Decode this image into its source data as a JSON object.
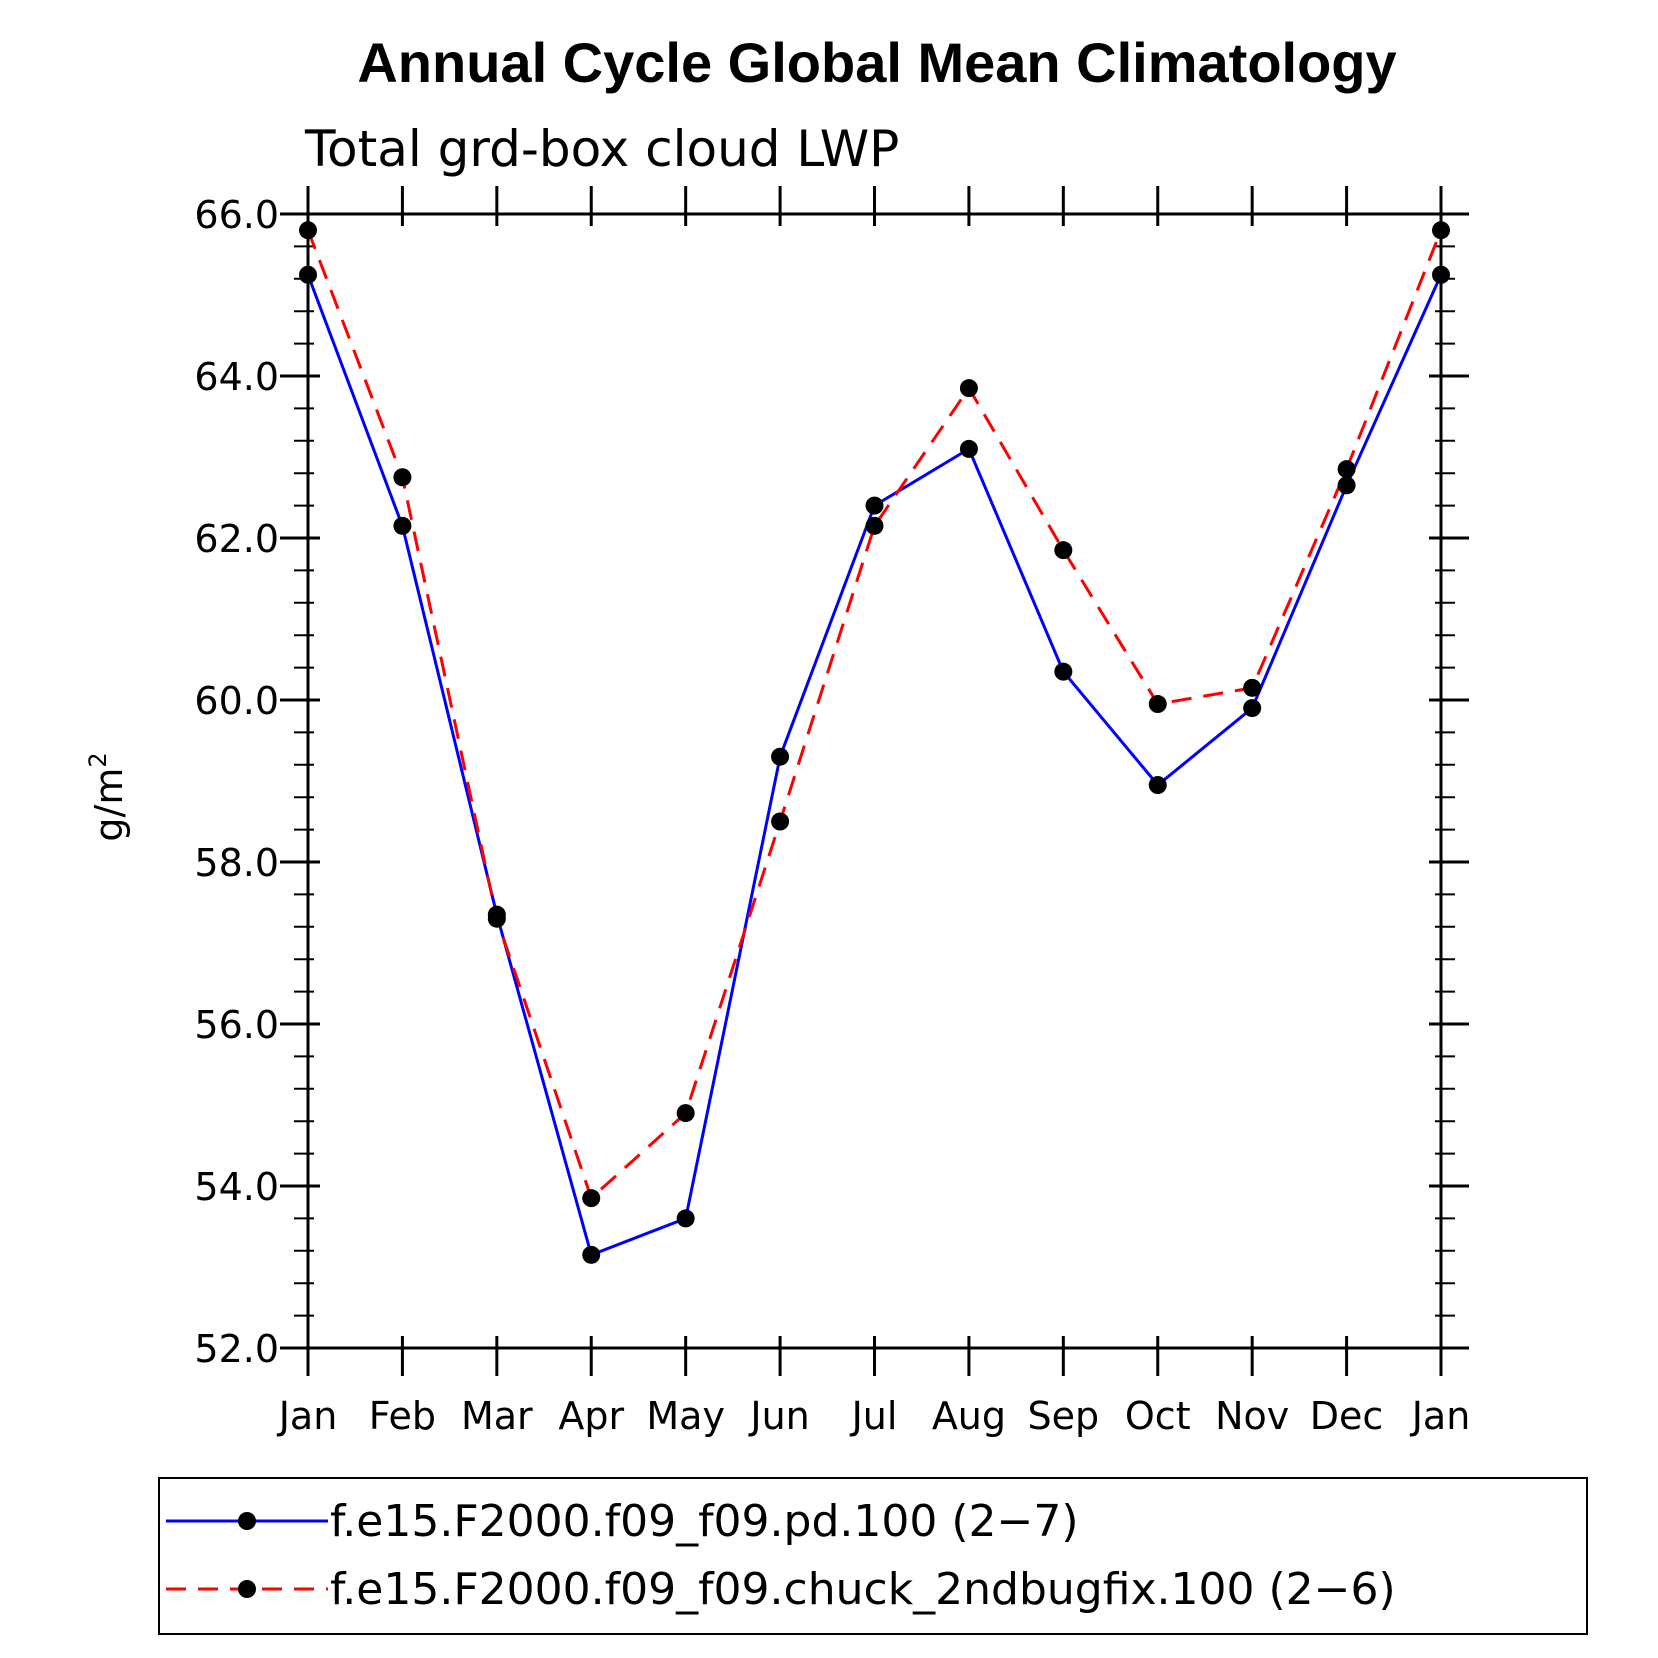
{
  "chart_data": {
    "type": "line",
    "title": "Annual Cycle Global Mean Climatology",
    "subtitle": "Total grd-box cloud LWP",
    "ylabel": "g/m",
    "ylabel_superscript": "2",
    "xlabel": "",
    "categories": [
      "Jan",
      "Feb",
      "Mar",
      "Apr",
      "May",
      "Jun",
      "Jul",
      "Aug",
      "Sep",
      "Oct",
      "Nov",
      "Dec",
      "Jan"
    ],
    "ylim": [
      52.0,
      66.0
    ],
    "yticks": [
      "52.0",
      "54.0",
      "56.0",
      "58.0",
      "60.0",
      "62.0",
      "64.0",
      "66.0"
    ],
    "ytick_values": [
      52,
      54,
      56,
      58,
      60,
      62,
      64,
      66
    ],
    "grid": false,
    "legend_position": "bottom",
    "series": [
      {
        "name": "f.e15.F2000.f09_f09.pd.100 (2−7)",
        "color": "#0000ff",
        "dash": "solid",
        "values": [
          65.25,
          62.15,
          57.35,
          53.15,
          53.6,
          59.3,
          62.4,
          63.1,
          60.35,
          58.95,
          59.9,
          62.65,
          65.25
        ]
      },
      {
        "name": "f.e15.F2000.f09_f09.chuck_2ndbugfix.100 (2−6)",
        "color": "#ff0000",
        "dash": "dashed",
        "values": [
          65.8,
          62.75,
          57.3,
          53.85,
          54.9,
          58.5,
          62.15,
          63.85,
          61.85,
          59.95,
          60.15,
          62.85,
          65.8
        ]
      }
    ]
  }
}
